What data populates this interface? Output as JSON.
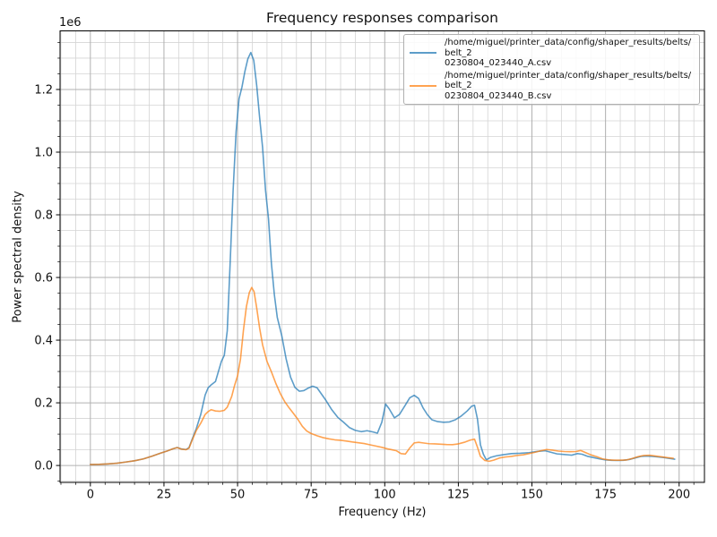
{
  "chart_data": {
    "type": "line",
    "title": "Frequency responses comparison",
    "xlabel": "Frequency (Hz)",
    "ylabel": "Power spectral density",
    "y_offset_label": "1e6",
    "xlim": [
      -10.3,
      208.6
    ],
    "ylim": [
      -54000,
      1387000
    ],
    "x_major_ticks": [
      0,
      25,
      50,
      75,
      100,
      125,
      150,
      175,
      200
    ],
    "x_tick_labels": [
      "0",
      "25",
      "50",
      "75",
      "100",
      "125",
      "150",
      "175",
      "200"
    ],
    "x_minor_step": 5,
    "y_major_ticks": [
      0,
      200000,
      400000,
      600000,
      800000,
      1000000,
      1200000
    ],
    "y_tick_labels": [
      "0.0",
      "0.2",
      "0.4",
      "0.6",
      "0.8",
      "1.0",
      "1.2"
    ],
    "y_minor_step": 50000,
    "grid": {
      "visible": true,
      "major_color": "#b0b0b0",
      "minor_color": "#d4d4d4"
    },
    "legend": {
      "position": "upper right",
      "entries": [
        {
          "label": "/home/miguel/printer_data/config/shaper_results/belts/belt_20230804_023440_A.csv",
          "lines": [
            "/home/miguel/printer_data/config/shaper_results/belts/belt_2",
            "0230804_023440_A.csv"
          ],
          "color": "#1f77b4"
        },
        {
          "label": "/home/miguel/printer_data/config/shaper_results/belts/belt_20230804_023440_B.csv",
          "lines": [
            "/home/miguel/printer_data/config/shaper_results/belts/belt_2",
            "0230804_023440_B.csv"
          ],
          "color": "#ff7f0e"
        }
      ]
    },
    "series": [
      {
        "name": "belt_20230804_023440_A.csv",
        "color": "#1f77b4",
        "alpha": 0.72,
        "points": [
          [
            0,
            3000
          ],
          [
            3,
            3600
          ],
          [
            6,
            5200
          ],
          [
            9,
            7200
          ],
          [
            12,
            11000
          ],
          [
            15,
            15000
          ],
          [
            18,
            21000
          ],
          [
            21,
            30000
          ],
          [
            24,
            40000
          ],
          [
            26,
            46000
          ],
          [
            28,
            53000
          ],
          [
            29.5,
            57500
          ],
          [
            31,
            52500
          ],
          [
            32.5,
            51000
          ],
          [
            33.5,
            57000
          ],
          [
            34.5,
            82000
          ],
          [
            36,
            118000
          ],
          [
            37.5,
            163000
          ],
          [
            39,
            225000
          ],
          [
            40,
            248000
          ],
          [
            41,
            257000
          ],
          [
            42.5,
            268000
          ],
          [
            43.5,
            300000
          ],
          [
            44.5,
            332000
          ],
          [
            45.5,
            352000
          ],
          [
            46.5,
            430000
          ],
          [
            47.5,
            650000
          ],
          [
            48.5,
            880000
          ],
          [
            49.5,
            1065000
          ],
          [
            50.5,
            1170000
          ],
          [
            51.5,
            1208000
          ],
          [
            52.5,
            1258000
          ],
          [
            53.5,
            1298000
          ],
          [
            54.5,
            1318000
          ],
          [
            55.5,
            1293000
          ],
          [
            56.5,
            1213000
          ],
          [
            57.5,
            1110000
          ],
          [
            58.5,
            1015000
          ],
          [
            59.5,
            878000
          ],
          [
            60.5,
            788000
          ],
          [
            61.5,
            645000
          ],
          [
            62.5,
            545000
          ],
          [
            63.5,
            472000
          ],
          [
            65,
            415000
          ],
          [
            66.5,
            340000
          ],
          [
            68,
            282000
          ],
          [
            69.5,
            249000
          ],
          [
            71,
            237000
          ],
          [
            72.5,
            239000
          ],
          [
            74,
            247000
          ],
          [
            75.5,
            253000
          ],
          [
            77,
            248000
          ],
          [
            78.5,
            228000
          ],
          [
            80,
            208000
          ],
          [
            82,
            178000
          ],
          [
            84,
            154000
          ],
          [
            86,
            138000
          ],
          [
            88,
            121000
          ],
          [
            90,
            112000
          ],
          [
            92,
            108000
          ],
          [
            94,
            111000
          ],
          [
            96,
            107000
          ],
          [
            97.5,
            103000
          ],
          [
            99,
            138000
          ],
          [
            100.3,
            196000
          ],
          [
            101.5,
            181000
          ],
          [
            103.3,
            152000
          ],
          [
            105,
            163000
          ],
          [
            107,
            193000
          ],
          [
            108.5,
            216000
          ],
          [
            110,
            224000
          ],
          [
            111.5,
            214000
          ],
          [
            113,
            184000
          ],
          [
            114.5,
            162000
          ],
          [
            116,
            146000
          ],
          [
            118,
            140000
          ],
          [
            120,
            138000
          ],
          [
            122,
            139000
          ],
          [
            124,
            146000
          ],
          [
            126,
            158000
          ],
          [
            128,
            174000
          ],
          [
            129.5,
            189000
          ],
          [
            130.5,
            192000
          ],
          [
            131.5,
            148000
          ],
          [
            132.5,
            66000
          ],
          [
            133.5,
            36000
          ],
          [
            134.5,
            18000
          ],
          [
            136,
            26000
          ],
          [
            138,
            31000
          ],
          [
            140,
            34000
          ],
          [
            143,
            38000
          ],
          [
            146,
            39000
          ],
          [
            149,
            41000
          ],
          [
            152,
            45000
          ],
          [
            154.5,
            47000
          ],
          [
            156.5,
            42000
          ],
          [
            158.5,
            37000
          ],
          [
            161,
            35000
          ],
          [
            163.5,
            33000
          ],
          [
            165.5,
            38000
          ],
          [
            167,
            36000
          ],
          [
            169,
            29000
          ],
          [
            171,
            25000
          ],
          [
            173,
            21000
          ],
          [
            175,
            18000
          ],
          [
            177,
            16500
          ],
          [
            179,
            16000
          ],
          [
            181,
            16500
          ],
          [
            183,
            19000
          ],
          [
            185,
            24000
          ],
          [
            187,
            29000
          ],
          [
            189,
            30000
          ],
          [
            191,
            29000
          ],
          [
            193,
            27000
          ],
          [
            195,
            25000
          ],
          [
            197,
            22000
          ],
          [
            198.5,
            20000
          ]
        ]
      },
      {
        "name": "belt_20230804_023440_B.csv",
        "color": "#ff7f0e",
        "alpha": 0.72,
        "points": [
          [
            0,
            3000
          ],
          [
            3,
            3600
          ],
          [
            6,
            5200
          ],
          [
            9,
            7200
          ],
          [
            12,
            11000
          ],
          [
            15,
            15000
          ],
          [
            18,
            21000
          ],
          [
            21,
            30000
          ],
          [
            24,
            40000
          ],
          [
            26,
            46000
          ],
          [
            28,
            53000
          ],
          [
            29.5,
            57000
          ],
          [
            31,
            52000
          ],
          [
            32.5,
            50500
          ],
          [
            33.5,
            55000
          ],
          [
            34.5,
            79000
          ],
          [
            36,
            112000
          ],
          [
            37.5,
            135000
          ],
          [
            39,
            163000
          ],
          [
            40,
            172000
          ],
          [
            41,
            178000
          ],
          [
            42.5,
            174000
          ],
          [
            44,
            173000
          ],
          [
            45.5,
            176000
          ],
          [
            46.5,
            186000
          ],
          [
            48,
            220000
          ],
          [
            49,
            256000
          ],
          [
            50,
            286000
          ],
          [
            51,
            340000
          ],
          [
            52,
            432000
          ],
          [
            53,
            507000
          ],
          [
            54,
            552000
          ],
          [
            54.8,
            568000
          ],
          [
            55.6,
            555000
          ],
          [
            56.5,
            503000
          ],
          [
            57.5,
            438000
          ],
          [
            58.5,
            385000
          ],
          [
            60,
            332000
          ],
          [
            61.5,
            299000
          ],
          [
            63,
            262000
          ],
          [
            64.5,
            230000
          ],
          [
            66,
            204000
          ],
          [
            67.5,
            184000
          ],
          [
            69,
            166000
          ],
          [
            70.5,
            147000
          ],
          [
            72,
            125000
          ],
          [
            73.5,
            110000
          ],
          [
            75,
            102000
          ],
          [
            77,
            95000
          ],
          [
            79,
            89000
          ],
          [
            81,
            85000
          ],
          [
            83,
            82000
          ],
          [
            85,
            80500
          ],
          [
            87,
            78000
          ],
          [
            89,
            75000
          ],
          [
            91,
            72500
          ],
          [
            93,
            70000
          ],
          [
            95,
            66000
          ],
          [
            97,
            62000
          ],
          [
            99,
            58000
          ],
          [
            101,
            53000
          ],
          [
            102.5,
            50000
          ],
          [
            104,
            47000
          ],
          [
            105.5,
            38000
          ],
          [
            107,
            36500
          ],
          [
            108.5,
            56000
          ],
          [
            110,
            72000
          ],
          [
            111.5,
            74000
          ],
          [
            113,
            72000
          ],
          [
            115,
            69500
          ],
          [
            117,
            69000
          ],
          [
            119,
            68000
          ],
          [
            121,
            67000
          ],
          [
            123,
            66500
          ],
          [
            125,
            69000
          ],
          [
            127,
            74000
          ],
          [
            129,
            81000
          ],
          [
            130.5,
            84000
          ],
          [
            131.5,
            58000
          ],
          [
            132.5,
            29000
          ],
          [
            134,
            16000
          ],
          [
            135.5,
            13500
          ],
          [
            137,
            17000
          ],
          [
            139,
            24000
          ],
          [
            141,
            27000
          ],
          [
            143,
            29000
          ],
          [
            145,
            32000
          ],
          [
            147,
            34000
          ],
          [
            149,
            38000
          ],
          [
            151,
            42000
          ],
          [
            153,
            47000
          ],
          [
            155,
            51000
          ],
          [
            157,
            49000
          ],
          [
            159,
            46000
          ],
          [
            161,
            44500
          ],
          [
            163,
            44000
          ],
          [
            165,
            44500
          ],
          [
            166.5,
            48000
          ],
          [
            168,
            42000
          ],
          [
            170,
            34000
          ],
          [
            172,
            28000
          ],
          [
            174,
            21000
          ],
          [
            176,
            18000
          ],
          [
            178,
            17000
          ],
          [
            180,
            17000
          ],
          [
            182,
            17500
          ],
          [
            184,
            22000
          ],
          [
            186,
            28000
          ],
          [
            188,
            32000
          ],
          [
            190,
            32500
          ],
          [
            192,
            30000
          ],
          [
            194,
            27500
          ],
          [
            196,
            25000
          ],
          [
            198,
            23000
          ]
        ]
      }
    ]
  }
}
